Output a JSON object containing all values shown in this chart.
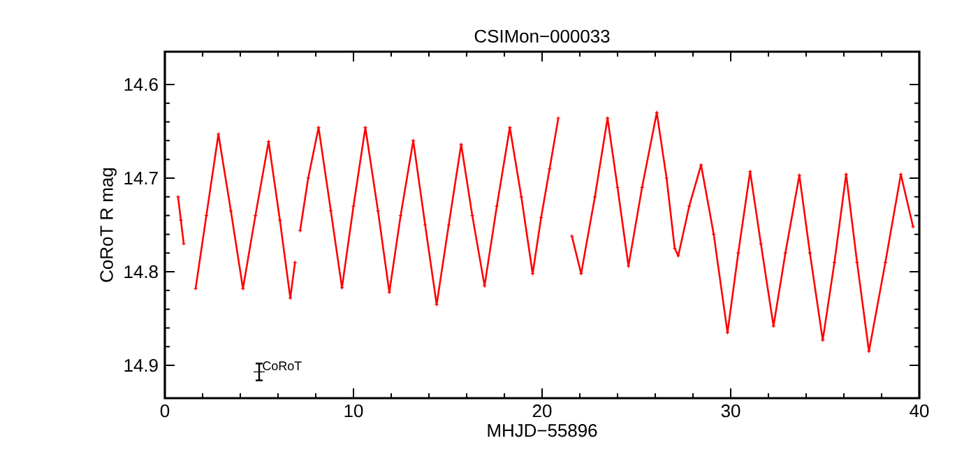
{
  "chart_data": {
    "type": "line",
    "title": "CSIMon−000033",
    "xlabel": "MHJD−55896",
    "ylabel": "CoRoT R mag",
    "xlim": [
      0,
      40
    ],
    "xticks": [
      0,
      10,
      20,
      30,
      40
    ],
    "ylim": [
      14.935,
      14.565
    ],
    "yticks": [
      14.6,
      14.7,
      14.8,
      14.9
    ],
    "marker": "cross",
    "annotations": [
      {
        "text": "CoRoT",
        "x": 5,
        "y": 14.907
      }
    ],
    "series": [
      {
        "color": "#ff0000",
        "x": [
          0.7,
          0.85,
          1.0,
          1.3,
          1.63,
          2.2,
          2.84,
          3.5,
          4.14,
          4.8,
          5.5,
          6.1,
          6.65,
          6.9,
          7.05,
          7.17,
          7.6,
          8.15,
          8.8,
          9.39,
          10.0,
          10.63,
          11.3,
          11.9,
          12.5,
          13.17,
          13.8,
          14.41,
          15.05,
          15.71,
          16.3,
          16.95,
          17.6,
          18.29,
          18.9,
          19.5,
          19.95,
          20.4,
          20.86,
          21.2,
          21.58,
          22.07,
          22.8,
          23.47,
          24.0,
          24.58,
          25.3,
          26.08,
          26.6,
          27.03,
          27.22,
          27.8,
          28.43,
          29.1,
          29.83,
          30.4,
          31.03,
          31.6,
          32.27,
          32.9,
          33.64,
          34.2,
          34.88,
          35.5,
          36.12,
          36.7,
          37.33,
          38.2,
          39.02,
          39.67
        ],
        "values": [
          14.72,
          14.745,
          14.77,
          null,
          14.818,
          14.74,
          14.653,
          14.735,
          14.818,
          14.74,
          14.661,
          14.745,
          14.828,
          14.79,
          null,
          14.756,
          14.7,
          14.646,
          14.735,
          14.817,
          14.73,
          14.646,
          14.735,
          14.822,
          14.74,
          14.66,
          14.75,
          14.835,
          14.75,
          14.664,
          14.74,
          14.815,
          14.73,
          14.646,
          14.72,
          14.802,
          14.742,
          14.69,
          14.636,
          null,
          14.762,
          14.802,
          14.72,
          14.636,
          14.71,
          14.794,
          14.71,
          14.63,
          14.7,
          14.775,
          14.783,
          14.73,
          14.686,
          14.76,
          14.865,
          14.78,
          14.693,
          14.77,
          14.858,
          14.78,
          14.697,
          14.78,
          14.873,
          14.79,
          14.696,
          14.79,
          14.885,
          14.79,
          14.696,
          14.752
        ]
      },
      {
        "type": "scatter",
        "color": "#000000",
        "x": [
          5
        ],
        "values": [
          14.907
        ],
        "errors": [
          0.009
        ]
      }
    ]
  }
}
